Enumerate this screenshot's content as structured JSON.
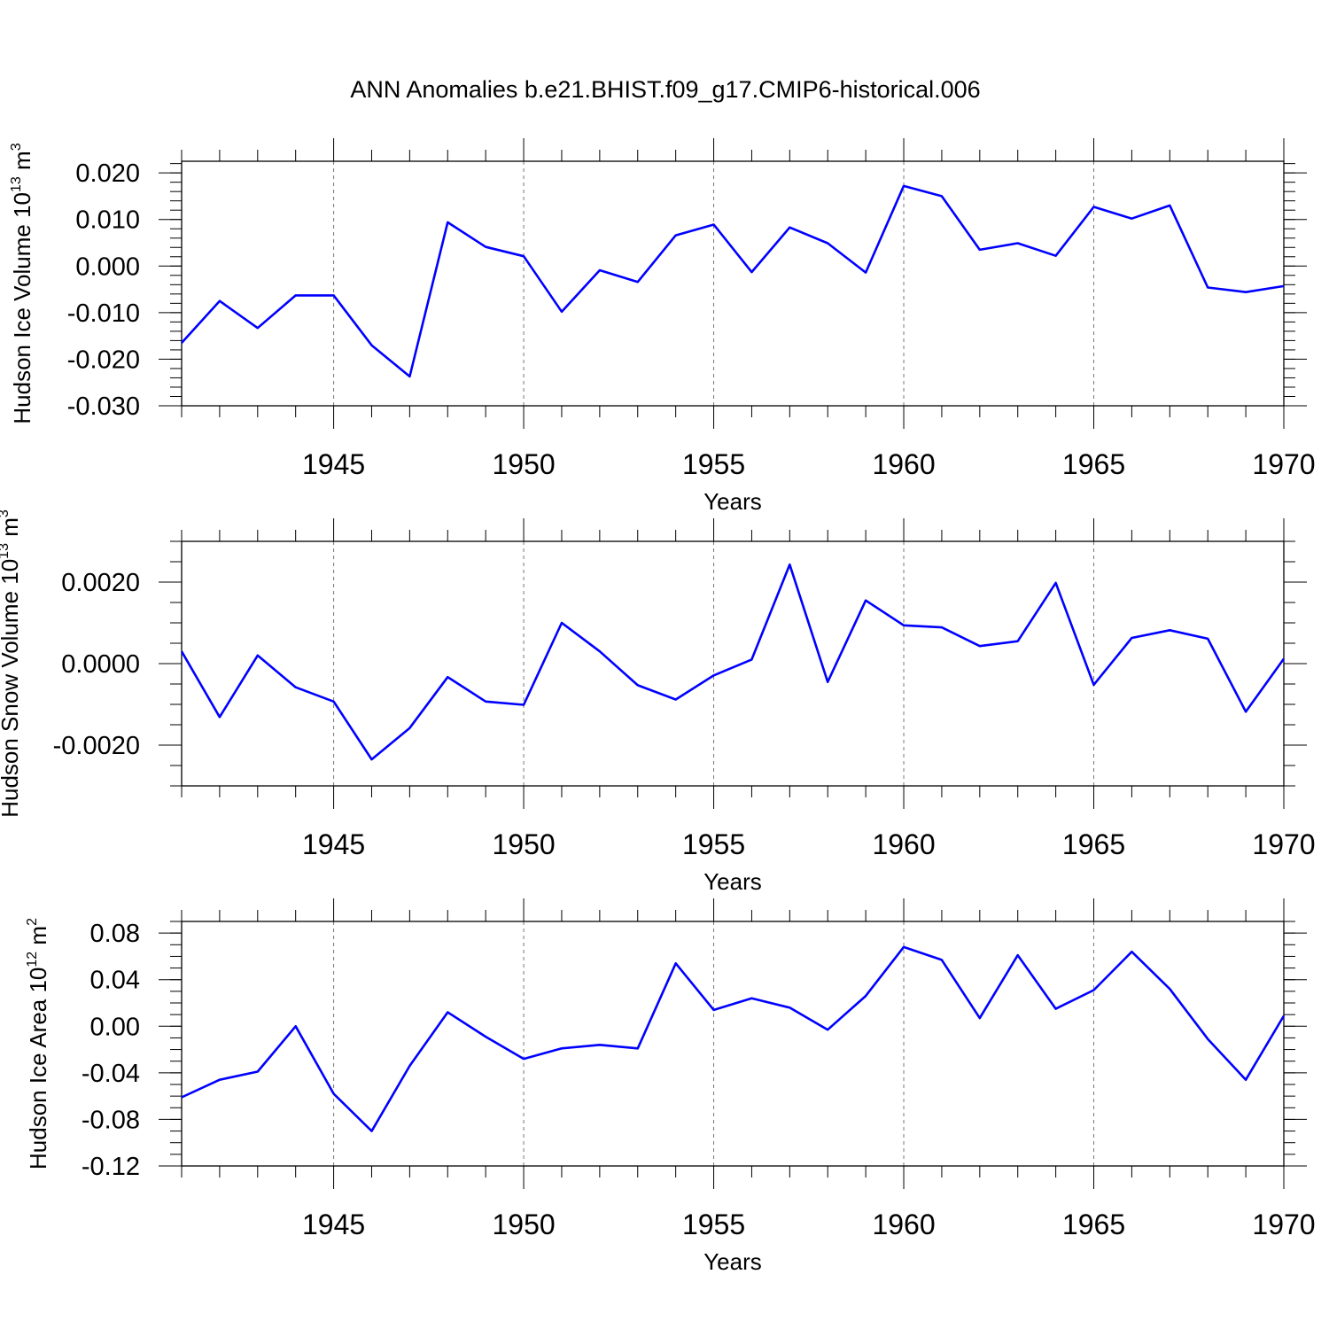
{
  "figure": {
    "title": "ANN Anomalies b.e21.BHIST.f09_g17.CMIP6-historical.006",
    "line_color": "#0000ff",
    "grid_color": "#777777"
  },
  "chart_data": [
    {
      "type": "line",
      "ylabel": "Hudson Ice Volume 10",
      "ylabel_exp": "13",
      "ylabel_unit": " m",
      "ylabel_unit_exp": "3",
      "xlabel": "Years",
      "xlim": [
        1941,
        1970
      ],
      "ylim": [
        -0.03,
        0.0225
      ],
      "yticks": [
        -0.03,
        -0.02,
        -0.01,
        0.0,
        0.01,
        0.02
      ],
      "ytick_labels": [
        "-0.030",
        "-0.020",
        "-0.010",
        "0.000",
        "0.010",
        "0.020"
      ],
      "yminor_step": 0.002,
      "xticks": [
        1945,
        1950,
        1955,
        1960,
        1965,
        1970
      ],
      "xtick_labels": [
        "1945",
        "1950",
        "1955",
        "1960",
        "1965",
        "1970"
      ],
      "grid_x": [
        1945,
        1950,
        1955,
        1960,
        1965
      ],
      "x": [
        1941,
        1942,
        1943,
        1944,
        1945,
        1946,
        1947,
        1948,
        1949,
        1950,
        1951,
        1952,
        1953,
        1954,
        1955,
        1956,
        1957,
        1958,
        1959,
        1960,
        1961,
        1962,
        1963,
        1964,
        1965,
        1966,
        1967,
        1968,
        1969,
        1970
      ],
      "y": [
        -0.0165,
        -0.0075,
        -0.0133,
        -0.0063,
        -0.0063,
        -0.017,
        -0.0237,
        0.0094,
        0.0041,
        0.0021,
        -0.0098,
        -0.0009,
        -0.0034,
        0.0066,
        0.0089,
        -0.0013,
        0.0083,
        0.0049,
        -0.0014,
        0.0172,
        0.015,
        0.0035,
        0.0049,
        0.0022,
        0.0127,
        0.0102,
        0.013,
        -0.0046,
        -0.0056,
        -0.0043
      ]
    },
    {
      "type": "line",
      "ylabel": "Hudson Snow Volume 10",
      "ylabel_exp": "13",
      "ylabel_unit": " m",
      "ylabel_unit_exp": "3",
      "xlabel": "Years",
      "xlim": [
        1941,
        1970
      ],
      "ylim": [
        -0.003,
        0.003
      ],
      "yticks": [
        -0.002,
        0.0,
        0.002
      ],
      "ytick_labels": [
        "-0.0020",
        "0.0000",
        "0.0020"
      ],
      "yminor_step": 0.0005,
      "xticks": [
        1945,
        1950,
        1955,
        1960,
        1965,
        1970
      ],
      "xtick_labels": [
        "1945",
        "1950",
        "1955",
        "1960",
        "1965",
        "1970"
      ],
      "grid_x": [
        1945,
        1950,
        1955,
        1960,
        1965
      ],
      "x": [
        1941,
        1942,
        1943,
        1944,
        1945,
        1946,
        1947,
        1948,
        1949,
        1950,
        1951,
        1952,
        1953,
        1954,
        1955,
        1956,
        1957,
        1958,
        1959,
        1960,
        1961,
        1962,
        1963,
        1964,
        1965,
        1966,
        1967,
        1968,
        1969,
        1970
      ],
      "y": [
        0.0003,
        -0.00131,
        0.0002,
        -0.00058,
        -0.00093,
        -0.00235,
        -0.00158,
        -0.00033,
        -0.00093,
        -0.00101,
        0.001,
        0.0003,
        -0.00053,
        -0.00088,
        -0.00029,
        0.0001,
        0.00243,
        -0.00045,
        0.00155,
        0.00094,
        0.00089,
        0.00043,
        0.00055,
        0.00198,
        -0.00052,
        0.00063,
        0.00082,
        0.00061,
        -0.00118,
        0.00012
      ]
    },
    {
      "type": "line",
      "ylabel": "Hudson Ice Area 10",
      "ylabel_exp": "12",
      "ylabel_unit": " m",
      "ylabel_unit_exp": "2",
      "xlabel": "Years",
      "xlim": [
        1941,
        1970
      ],
      "ylim": [
        -0.12,
        0.09
      ],
      "yticks": [
        -0.12,
        -0.08,
        -0.04,
        0.0,
        0.04,
        0.08
      ],
      "ytick_labels": [
        "-0.12",
        "-0.08",
        "-0.04",
        "0.00",
        "0.04",
        "0.08"
      ],
      "yminor_step": 0.01,
      "xticks": [
        1945,
        1950,
        1955,
        1960,
        1965,
        1970
      ],
      "xtick_labels": [
        "1945",
        "1950",
        "1955",
        "1960",
        "1965",
        "1970"
      ],
      "grid_x": [
        1945,
        1950,
        1955,
        1960,
        1965
      ],
      "x": [
        1941,
        1942,
        1943,
        1944,
        1945,
        1946,
        1947,
        1948,
        1949,
        1950,
        1951,
        1952,
        1953,
        1954,
        1955,
        1956,
        1957,
        1958,
        1959,
        1960,
        1961,
        1962,
        1963,
        1964,
        1965,
        1966,
        1967,
        1968,
        1969,
        1970
      ],
      "y": [
        -0.061,
        -0.046,
        -0.039,
        0.0,
        -0.058,
        -0.09,
        -0.034,
        0.012,
        -0.009,
        -0.028,
        -0.019,
        -0.016,
        -0.019,
        0.054,
        0.014,
        0.024,
        0.016,
        -0.003,
        0.026,
        0.068,
        0.057,
        0.007,
        0.061,
        0.015,
        0.031,
        0.064,
        0.032,
        -0.011,
        -0.046,
        0.009
      ]
    }
  ]
}
